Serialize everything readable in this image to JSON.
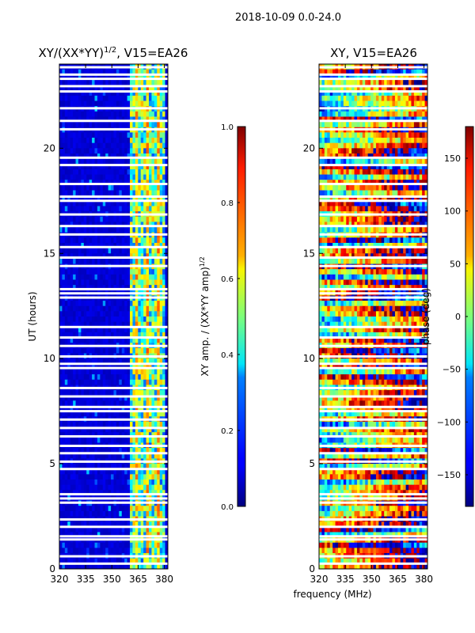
{
  "suptitle": "2018-10-09 0.0-24.0",
  "shared_xlabel": "frequency (MHz)",
  "chart_data": [
    {
      "type": "heatmap",
      "title_main": "XY/(XX*YY)",
      "title_sup": "1/2",
      "title_tail": ", V15=EA26",
      "ylabel": "UT (hours)",
      "xlim": [
        320,
        382
      ],
      "ylim": [
        0,
        24
      ],
      "xticks": [
        320,
        335,
        350,
        365,
        380
      ],
      "yticks": [
        0,
        5,
        10,
        15,
        20
      ],
      "colorbar": {
        "label_main": "XY amp. / (XX*YY amp)",
        "label_sup": "1/2",
        "range": [
          0.0,
          1.0
        ],
        "ticks": [
          0.0,
          0.2,
          0.4,
          0.6,
          0.8,
          1.0
        ],
        "tick_labels": [
          "0.0",
          "0.2",
          "0.4",
          "0.6",
          "0.8",
          "1.0"
        ],
        "colormap": "jet"
      }
    },
    {
      "type": "heatmap",
      "title_main": "XY, V15=EA26",
      "title_sup": "",
      "title_tail": "",
      "ylabel": "",
      "xlim": [
        320,
        382
      ],
      "ylim": [
        0,
        24
      ],
      "xticks": [
        320,
        335,
        350,
        365,
        380
      ],
      "yticks": [
        0,
        5,
        10,
        15,
        20
      ],
      "colorbar": {
        "label_main": "phase (deg)",
        "label_sup": "",
        "range": [
          -180,
          180
        ],
        "ticks": [
          -150,
          -100,
          -50,
          0,
          50,
          100,
          150
        ],
        "tick_labels": [
          "−150",
          "−100",
          "−50",
          "0",
          "50",
          "100",
          "150"
        ],
        "colormap": "jet"
      }
    }
  ],
  "data_gaps_ut_hours": [
    0.25,
    0.6,
    1.4,
    1.55,
    2.0,
    2.35,
    3.15,
    3.35,
    3.55,
    4.75,
    5.1,
    5.5,
    5.85,
    6.3,
    6.7,
    7.1,
    7.5,
    7.7,
    8.2,
    8.6,
    9.55,
    9.75,
    10.1,
    10.6,
    11.0,
    11.5,
    12.9,
    13.1,
    13.3,
    14.4,
    14.8,
    15.3,
    15.9,
    16.3,
    16.85,
    17.5,
    17.7,
    18.3,
    19.2,
    19.55,
    20.9,
    21.3,
    21.9,
    22.7,
    22.95,
    23.3,
    23.5,
    23.85
  ]
}
